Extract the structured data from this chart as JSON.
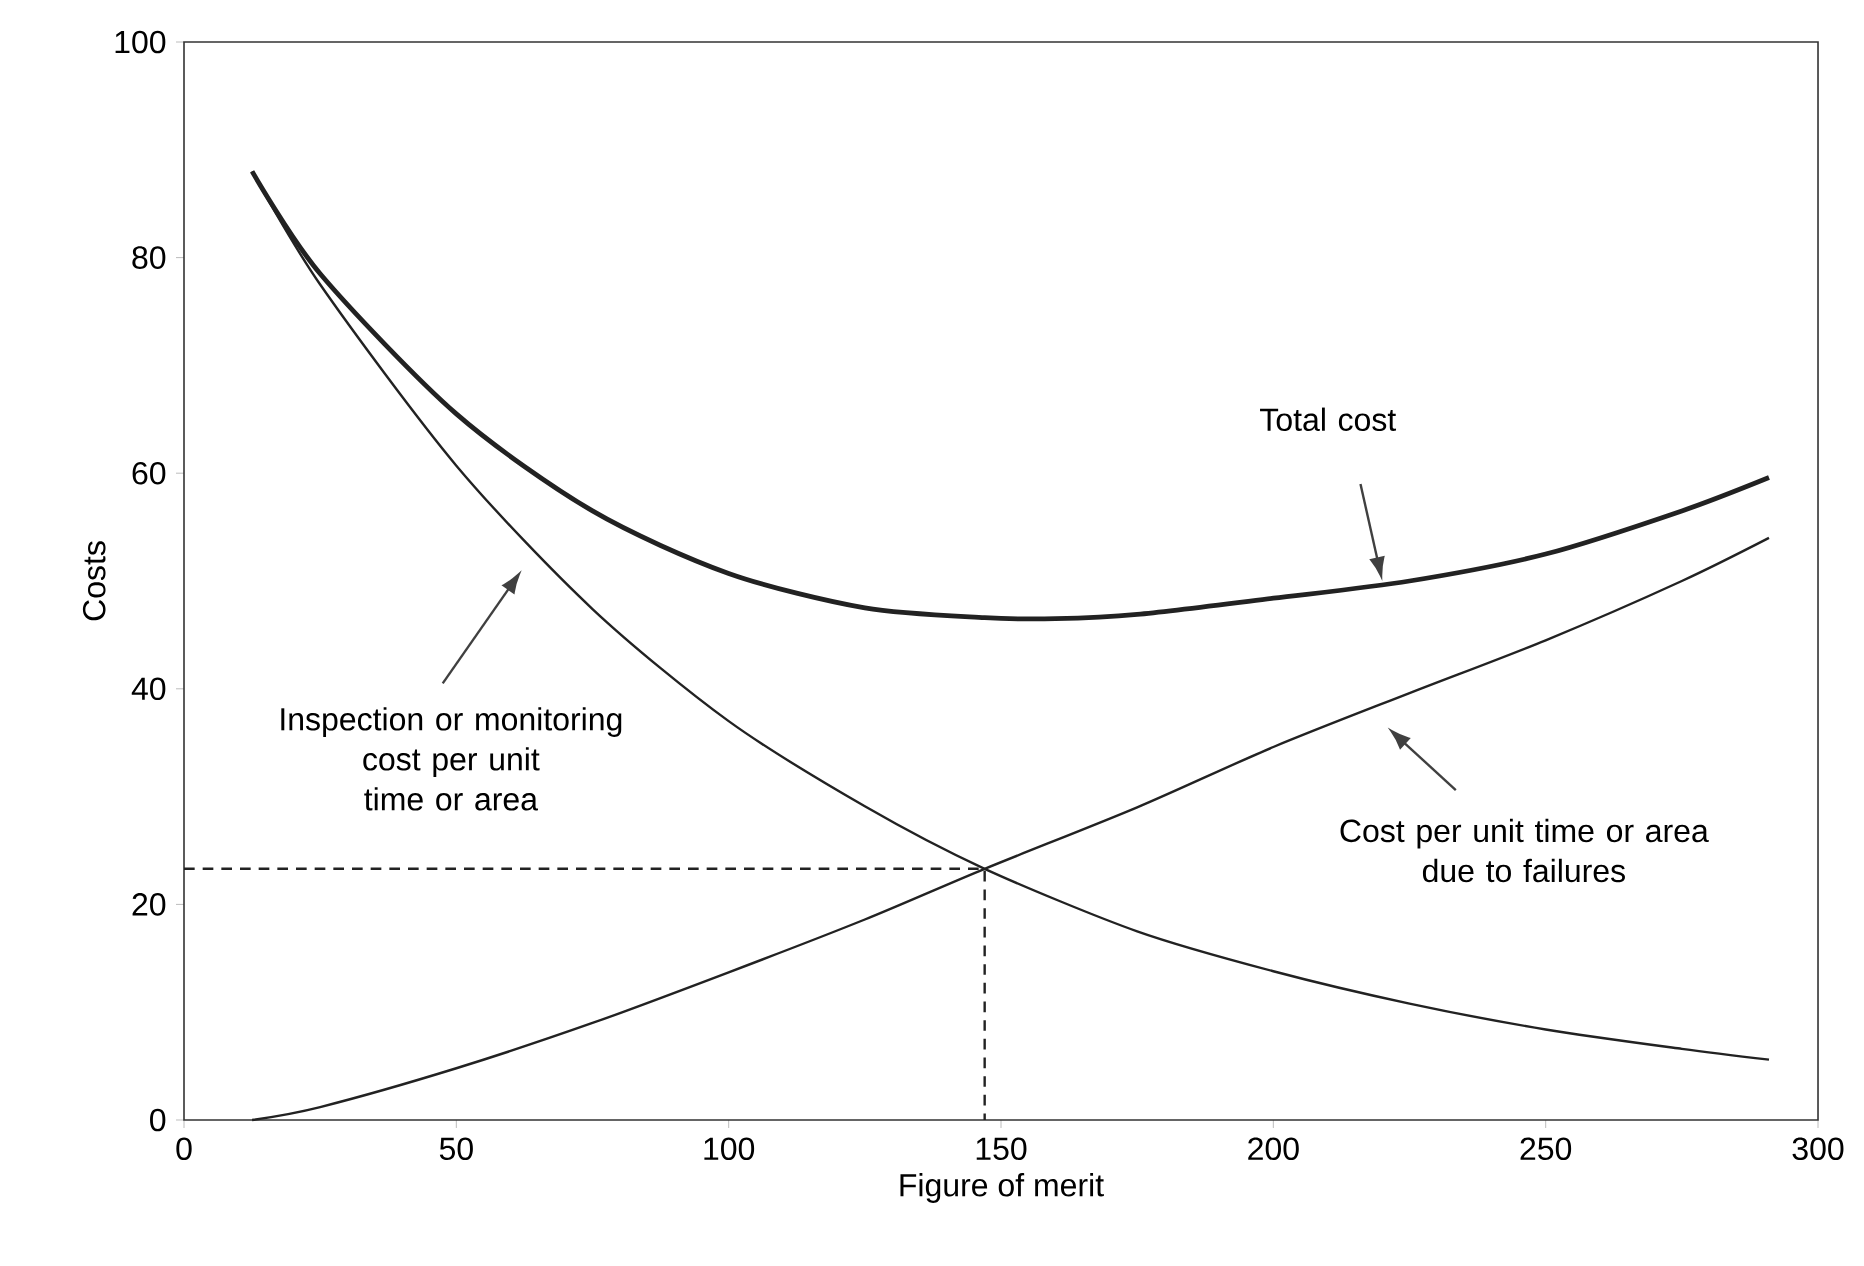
{
  "chart_data": {
    "type": "line",
    "xlabel": "Figure of merit",
    "ylabel": "Costs",
    "xlim": [
      0,
      300
    ],
    "ylim": [
      0,
      100
    ],
    "xticks": [
      0,
      50,
      100,
      150,
      200,
      250,
      300
    ],
    "yticks": [
      0,
      20,
      40,
      60,
      80,
      100
    ],
    "grid": false,
    "marker": "none",
    "series": [
      {
        "color": "#222222",
        "x": [
          12.5,
          25,
          50,
          75,
          100,
          125,
          147,
          160,
          175,
          200,
          225,
          250,
          275,
          291
        ],
        "values": [
          88,
          78.5,
          65.5,
          56.5,
          50.7,
          47.5,
          46.6,
          46.5,
          46.9,
          48.4,
          50,
          52.5,
          56.5,
          59.6
        ]
      },
      {
        "color": "#222222",
        "x": [
          12.5,
          25,
          50,
          75,
          100,
          125,
          147,
          175,
          200,
          225,
          250,
          275,
          291
        ],
        "values": [
          88,
          77.5,
          60.7,
          47.4,
          37,
          29.1,
          23.3,
          17.5,
          13.8,
          10.8,
          8.4,
          6.6,
          5.6
        ]
      },
      {
        "color": "#222222",
        "x": [
          12.5,
          25,
          50,
          75,
          100,
          125,
          147,
          175,
          200,
          225,
          250,
          275,
          291
        ],
        "values": [
          0,
          1.2,
          4.8,
          9,
          13.7,
          18.6,
          23.3,
          29,
          34.6,
          39.6,
          44.5,
          50,
          54
        ]
      },
      {
        "color": "#222222",
        "line_style": "dashed",
        "x": [
          0,
          147,
          147
        ],
        "values": [
          23.3,
          23.3,
          0
        ]
      }
    ],
    "annotations": [
      "Total cost",
      "Inspection or monitoring\ncost per unit\ntime or area",
      "Cost per unit time or area\ndue to failures"
    ]
  }
}
